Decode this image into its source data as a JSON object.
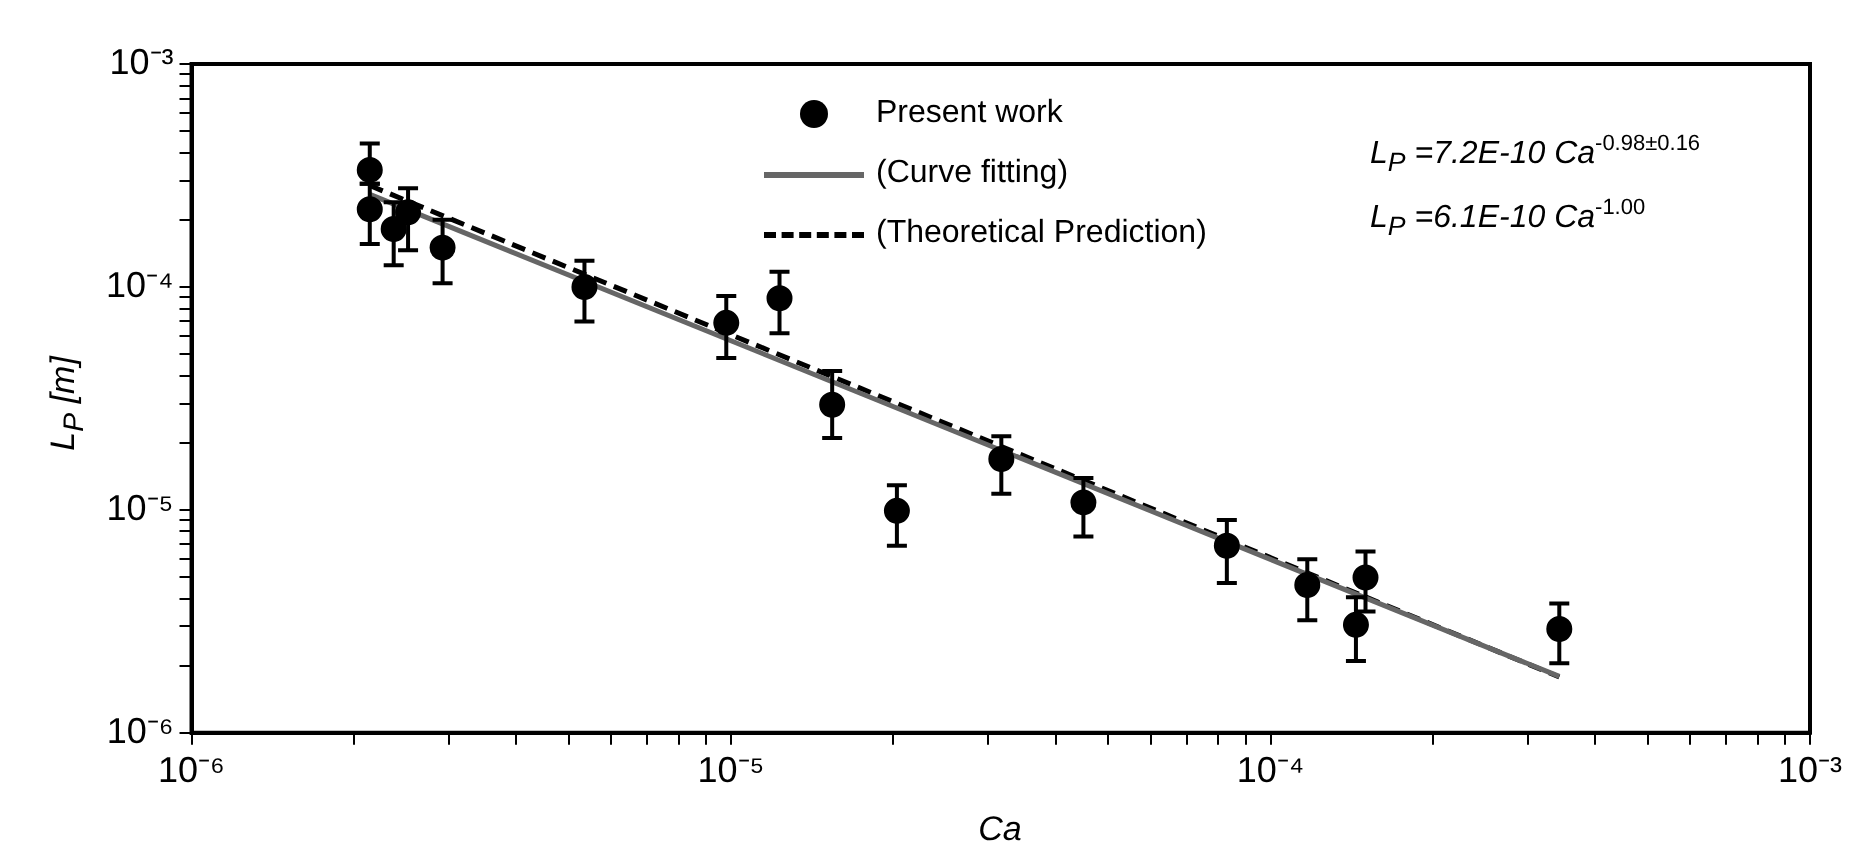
{
  "chart_data": {
    "type": "scatter",
    "xlabel": "Ca",
    "ylabel": "L$_{P}$ [m]",
    "log": "xy",
    "grid": false,
    "legend": "top",
    "xlim": [
      1e-06,
      0.001
    ],
    "ylim": [
      1e-06,
      0.001
    ],
    "xticks": [
      {
        "value": 1e-06,
        "label": "10⁻⁶"
      },
      {
        "value": 2e-06,
        "label": null
      },
      {
        "value": 3e-06,
        "label": null
      },
      {
        "value": 4e-06,
        "label": null
      },
      {
        "value": 5e-06,
        "label": null
      },
      {
        "value": 6e-06,
        "label": null
      },
      {
        "value": 7e-06,
        "label": null
      },
      {
        "value": 8e-06,
        "label": null
      },
      {
        "value": 9e-06,
        "label": null
      },
      {
        "value": 1e-05,
        "label": "10⁻⁵"
      },
      {
        "value": 2e-05,
        "label": null
      },
      {
        "value": 3e-05,
        "label": null
      },
      {
        "value": 4e-05,
        "label": null
      },
      {
        "value": 5e-05,
        "label": null
      },
      {
        "value": 6e-05,
        "label": null
      },
      {
        "value": 7e-05,
        "label": null
      },
      {
        "value": 8e-05,
        "label": null
      },
      {
        "value": 9e-05,
        "label": null
      },
      {
        "value": 0.0001,
        "label": "10⁻⁴"
      },
      {
        "value": 0.0002,
        "label": null
      },
      {
        "value": 0.0003,
        "label": null
      },
      {
        "value": 0.0004,
        "label": null
      },
      {
        "value": 0.0005,
        "label": null
      },
      {
        "value": 0.0006,
        "label": null
      },
      {
        "value": 0.0007,
        "label": null
      },
      {
        "value": 0.0008,
        "label": null
      },
      {
        "value": 0.0009,
        "label": null
      },
      {
        "value": 0.001,
        "label": "10⁻³"
      }
    ],
    "yticks": [
      {
        "value": 1e-06,
        "label": "10⁻⁶"
      },
      {
        "value": 2e-06,
        "label": null
      },
      {
        "value": 3e-06,
        "label": null
      },
      {
        "value": 4e-06,
        "label": null
      },
      {
        "value": 5e-06,
        "label": null
      },
      {
        "value": 6e-06,
        "label": null
      },
      {
        "value": 7e-06,
        "label": null
      },
      {
        "value": 8e-06,
        "label": null
      },
      {
        "value": 9e-06,
        "label": null
      },
      {
        "value": 1e-05,
        "label": "10⁻⁵"
      },
      {
        "value": 2e-05,
        "label": null
      },
      {
        "value": 3e-05,
        "label": null
      },
      {
        "value": 4e-05,
        "label": null
      },
      {
        "value": 5e-05,
        "label": null
      },
      {
        "value": 6e-05,
        "label": null
      },
      {
        "value": 7e-05,
        "label": null
      },
      {
        "value": 8e-05,
        "label": null
      },
      {
        "value": 9e-05,
        "label": null
      },
      {
        "value": 0.0001,
        "label": "10⁻⁴"
      },
      {
        "value": 0.0002,
        "label": null
      },
      {
        "value": 0.0003,
        "label": null
      },
      {
        "value": 0.0004,
        "label": null
      },
      {
        "value": 0.0005,
        "label": null
      },
      {
        "value": 0.0006,
        "label": null
      },
      {
        "value": 0.0007,
        "label": null
      },
      {
        "value": 0.0008,
        "label": null
      },
      {
        "value": 0.0009,
        "label": null
      },
      {
        "value": 0.001,
        "label": "10⁻³"
      }
    ],
    "series": [
      {
        "name": "Present work",
        "type": "scatter",
        "color": "#000000",
        "marker": "circle",
        "x": [
          2.14e-06,
          2.14e-06,
          2.37e-06,
          2.52e-06,
          2.92e-06,
          5.35e-06,
          9.8e-06,
          1.23e-05,
          1.54e-05,
          2.03e-05,
          3.17e-05,
          4.5e-05,
          8.3e-05,
          0.000117,
          0.000144,
          0.00015,
          0.000343
        ],
        "values": [
          0.000335,
          0.000223,
          0.000182,
          0.000216,
          0.00015,
          0.0001,
          6.9e-05,
          8.9e-05,
          2.96e-05,
          9.9e-06,
          1.69e-05,
          1.08e-05,
          6.9e-06,
          4.6e-06,
          3.05e-06,
          4.97e-06,
          2.92e-06
        ],
        "errors": [
          [
            0.00029,
            0.00044
          ],
          [
            0.000156,
            0.00029
          ],
          [
            0.000125,
            0.00024
          ],
          [
            0.000146,
            0.000277
          ],
          [
            0.000104,
            0.0002
          ],
          [
            7e-05,
            0.000131
          ],
          [
            4.8e-05,
            9.1e-05
          ],
          [
            6.2e-05,
            0.000117
          ],
          [
            2.1e-05,
            4.2e-05
          ],
          [
            6.9e-06,
            1.29e-05
          ],
          [
            1.18e-05,
            2.14e-05
          ],
          [
            7.6e-06,
            1.39e-05
          ],
          [
            4.7e-06,
            9e-06
          ],
          [
            3.2e-06,
            6e-06
          ],
          [
            2.1e-06,
            4.06e-06
          ],
          [
            3.5e-06,
            6.5e-06
          ],
          [
            2.05e-06,
            3.8e-06
          ]
        ]
      },
      {
        "name": "(Curve fitting)",
        "type": "line",
        "color": "#666666",
        "line_style": "solid",
        "x": [
          2.14e-06,
          0.000343
        ],
        "values": [
          0.00026,
          1.79e-06
        ]
      },
      {
        "name": "(Theoretical Prediction)",
        "type": "line",
        "color": "#000000",
        "line_style": "dashed",
        "x": [
          2.14e-06,
          0.000343
        ],
        "values": [
          0.000285,
          1.78e-06
        ]
      }
    ],
    "annotations": [
      "L$_{P}$ =7.2E-10  Ca$^{-0.98±0.16}$",
      "L$_{P}$ =6.1E-10  Ca$^{-1.00}$"
    ]
  }
}
